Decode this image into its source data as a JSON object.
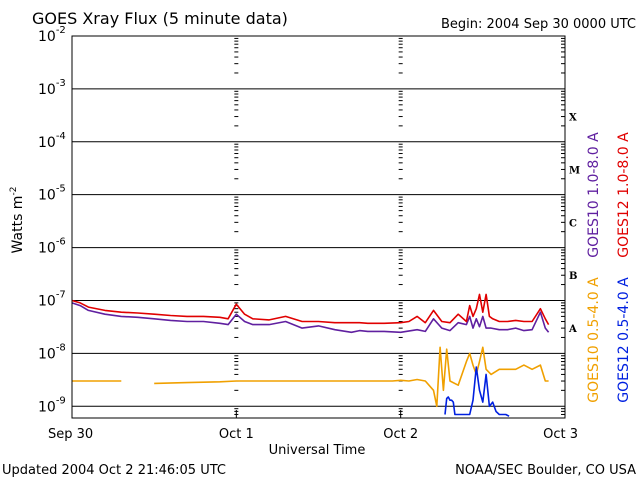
{
  "chart_data": {
    "type": "line",
    "title": "GOES Xray Flux (5 minute data)",
    "begin_text": "Begin:  2004 Sep 30 0000 UTC",
    "xlabel": "Universal Time",
    "ylabel": "Watts m",
    "ylabel_exponent": "-2",
    "footer_left": "Updated 2004 Oct  2 21:46:05 UTC",
    "footer_right": "NOAA/SEC Boulder, CO USA",
    "x_unit": "days since 2004 Sep 30 00:00 UTC",
    "xlim": [
      0,
      3
    ],
    "x_ticks": [
      {
        "value": 0,
        "label": "Sep 30"
      },
      {
        "value": 1,
        "label": "Oct 1"
      },
      {
        "value": 2,
        "label": "Oct 2"
      },
      {
        "value": 3,
        "label": "Oct 3"
      }
    ],
    "y_scale": "log",
    "ylim": [
      6e-10,
      0.01
    ],
    "y_ticks": [
      {
        "value": 0.01,
        "mantissa": "10",
        "exp": "-2"
      },
      {
        "value": 0.001,
        "mantissa": "10",
        "exp": "-3"
      },
      {
        "value": 0.0001,
        "mantissa": "10",
        "exp": "-4"
      },
      {
        "value": 1e-05,
        "mantissa": "10",
        "exp": "-5"
      },
      {
        "value": 1e-06,
        "mantissa": "10",
        "exp": "-6"
      },
      {
        "value": 1e-07,
        "mantissa": "10",
        "exp": "-7"
      },
      {
        "value": 1e-08,
        "mantissa": "10",
        "exp": "-8"
      },
      {
        "value": 1e-09,
        "mantissa": "10",
        "exp": "-9"
      }
    ],
    "class_labels": [
      {
        "label": "X",
        "value": 0.0003
      },
      {
        "label": "M",
        "value": 3e-05
      },
      {
        "label": "C",
        "value": 3e-06
      },
      {
        "label": "B",
        "value": 3e-07
      },
      {
        "label": "A",
        "value": 3e-08
      }
    ],
    "grid": true,
    "legend_position": "right",
    "series": [
      {
        "name": "GOES10 1.0-8.0 A",
        "color": "#6020a0",
        "x": [
          0,
          0.05,
          0.1,
          0.2,
          0.3,
          0.4,
          0.5,
          0.6,
          0.7,
          0.8,
          0.9,
          0.95,
          1.0,
          1.05,
          1.1,
          1.2,
          1.3,
          1.4,
          1.5,
          1.6,
          1.7,
          1.75,
          1.8,
          1.9,
          2.0,
          2.1,
          2.15,
          2.2,
          2.25,
          2.3,
          2.35,
          2.4,
          2.42,
          2.44,
          2.46,
          2.48,
          2.5,
          2.52,
          2.55,
          2.6,
          2.65,
          2.7,
          2.75,
          2.8,
          2.85,
          2.88,
          2.9
        ],
        "y": [
          9e-08,
          8e-08,
          6.5e-08,
          5.5e-08,
          5e-08,
          4.8e-08,
          4.5e-08,
          4.2e-08,
          4e-08,
          4e-08,
          3.7e-08,
          3.5e-08,
          5.5e-08,
          4e-08,
          3.5e-08,
          3.5e-08,
          4e-08,
          3e-08,
          3.3e-08,
          2.8e-08,
          2.5e-08,
          2.7e-08,
          2.6e-08,
          2.6e-08,
          2.5e-08,
          2.8e-08,
          2.6e-08,
          4.5e-08,
          3e-08,
          2.7e-08,
          3.8e-08,
          3.5e-08,
          5e-08,
          3e-08,
          4.5e-08,
          3.2e-08,
          5e-08,
          3e-08,
          3e-08,
          2.8e-08,
          2.8e-08,
          3e-08,
          2.7e-08,
          2.8e-08,
          6e-08,
          3e-08,
          2.5e-08
        ]
      },
      {
        "name": "GOES12 1.0-8.0 A",
        "color": "#e00000",
        "x": [
          0,
          0.05,
          0.1,
          0.2,
          0.3,
          0.4,
          0.5,
          0.6,
          0.7,
          0.8,
          0.9,
          0.95,
          1.0,
          1.05,
          1.1,
          1.2,
          1.3,
          1.4,
          1.5,
          1.6,
          1.7,
          1.75,
          1.8,
          1.9,
          2.0,
          2.05,
          2.1,
          2.15,
          2.2,
          2.25,
          2.3,
          2.35,
          2.4,
          2.42,
          2.44,
          2.46,
          2.48,
          2.5,
          2.52,
          2.54,
          2.56,
          2.6,
          2.65,
          2.7,
          2.75,
          2.8,
          2.85,
          2.88,
          2.9
        ],
        "y": [
          1e-07,
          9e-08,
          7.5e-08,
          6.5e-08,
          6e-08,
          5.8e-08,
          5.5e-08,
          5.2e-08,
          5e-08,
          5e-08,
          4.8e-08,
          4.5e-08,
          8.5e-08,
          5.5e-08,
          4.5e-08,
          4.3e-08,
          5e-08,
          4e-08,
          4e-08,
          3.8e-08,
          3.8e-08,
          3.8e-08,
          3.7e-08,
          3.7e-08,
          3.8e-08,
          4e-08,
          5e-08,
          3.8e-08,
          6.5e-08,
          4e-08,
          3.8e-08,
          5.5e-08,
          4e-08,
          8e-08,
          5e-08,
          7e-08,
          1.3e-07,
          6e-08,
          1.3e-07,
          5e-08,
          4.5e-08,
          4e-08,
          4e-08,
          4.2e-08,
          4e-08,
          4e-08,
          7e-08,
          4.5e-08,
          3.5e-08
        ]
      },
      {
        "name": "GOES10 0.5-4.0 A",
        "color": "#f0a000",
        "x": [
          0,
          0.3,
          0.45,
          0.5,
          0.7,
          0.9,
          1.0,
          1.2,
          1.4,
          1.6,
          1.8,
          1.95,
          2.0,
          2.05,
          2.1,
          2.15,
          2.2,
          2.22,
          2.24,
          2.26,
          2.28,
          2.3,
          2.35,
          2.4,
          2.42,
          2.44,
          2.46,
          2.48,
          2.5,
          2.52,
          2.55,
          2.6,
          2.65,
          2.7,
          2.75,
          2.8,
          2.85,
          2.88,
          2.9
        ],
        "y": [
          3e-09,
          3e-09,
          null,
          2.7e-09,
          2.8e-09,
          2.9e-09,
          3e-09,
          3e-09,
          3e-09,
          3e-09,
          3e-09,
          3e-09,
          3.1e-09,
          3e-09,
          3.2e-09,
          3e-09,
          2e-09,
          1e-09,
          1.3e-08,
          2e-09,
          1.2e-08,
          3e-09,
          2.5e-09,
          7e-09,
          1e-08,
          6e-09,
          4e-09,
          7e-09,
          1.3e-08,
          5e-09,
          4e-09,
          5e-09,
          5e-09,
          5e-09,
          6e-09,
          5e-09,
          6e-09,
          3e-09,
          3e-09
        ]
      },
      {
        "name": "GOES12 0.5-4.0 A",
        "color": "#0020e0",
        "x": [
          2.27,
          2.28,
          2.29,
          2.3,
          2.31,
          2.32,
          2.33,
          2.42,
          2.44,
          2.46,
          2.48,
          2.5,
          2.52,
          2.54,
          2.56,
          2.58,
          2.6,
          2.62,
          2.64,
          2.66
        ],
        "y": [
          7e-10,
          1.4e-09,
          1.5e-09,
          1.3e-09,
          1.3e-09,
          1.2e-09,
          7e-10,
          7e-10,
          1.3e-09,
          5.5e-09,
          2e-09,
          1.2e-09,
          4e-09,
          1e-09,
          1.2e-09,
          8e-10,
          7e-10,
          7e-10,
          7e-10,
          6.5e-10
        ]
      }
    ]
  }
}
